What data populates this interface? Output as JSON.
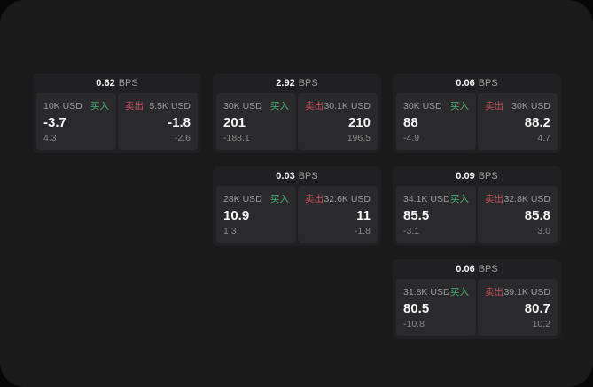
{
  "page": {
    "bps_suffix": "BPS",
    "buy_label": "买入",
    "sell_label": "卖出"
  },
  "colors": {
    "background": "#070708",
    "surface": "#1a1a1b",
    "card": "#202022",
    "panel": "#2a2a2c",
    "text_primary": "#f5f5f5",
    "text_secondary": "#9c9c9c",
    "buy_green": "#4caf77",
    "sell_red": "#c74f63"
  },
  "cards": [
    {
      "row": 1,
      "col": 1,
      "bps": "0.62",
      "buy": {
        "amount": "10K USD",
        "value": "-3.7",
        "delta": "4.3"
      },
      "sell": {
        "amount": "5.5K USD",
        "value": "-1.8",
        "delta": "-2.6"
      }
    },
    {
      "row": 1,
      "col": 2,
      "bps": "2.92",
      "buy": {
        "amount": "30K USD",
        "value": "201",
        "delta": "-188.1"
      },
      "sell": {
        "amount": "30.1K USD",
        "value": "210",
        "delta": "196.5"
      }
    },
    {
      "row": 1,
      "col": 3,
      "bps": "0.06",
      "buy": {
        "amount": "30K USD",
        "value": "88",
        "delta": "-4.9"
      },
      "sell": {
        "amount": "30K USD",
        "value": "88.2",
        "delta": "4.7"
      }
    },
    {
      "row": 2,
      "col": 2,
      "bps": "0.03",
      "buy": {
        "amount": "28K USD",
        "value": "10.9",
        "delta": "1.3"
      },
      "sell": {
        "amount": "32.6K USD",
        "value": "11",
        "delta": "-1.8"
      }
    },
    {
      "row": 2,
      "col": 3,
      "bps": "0.09",
      "buy": {
        "amount": "34.1K USD",
        "value": "85.5",
        "delta": "-3.1"
      },
      "sell": {
        "amount": "32.8K USD",
        "value": "85.8",
        "delta": "3.0"
      }
    },
    {
      "row": 3,
      "col": 3,
      "bps": "0.06",
      "buy": {
        "amount": "31.8K USD",
        "value": "80.5",
        "delta": "-10.8"
      },
      "sell": {
        "amount": "39.1K USD",
        "value": "80.7",
        "delta": "10.2"
      }
    }
  ]
}
